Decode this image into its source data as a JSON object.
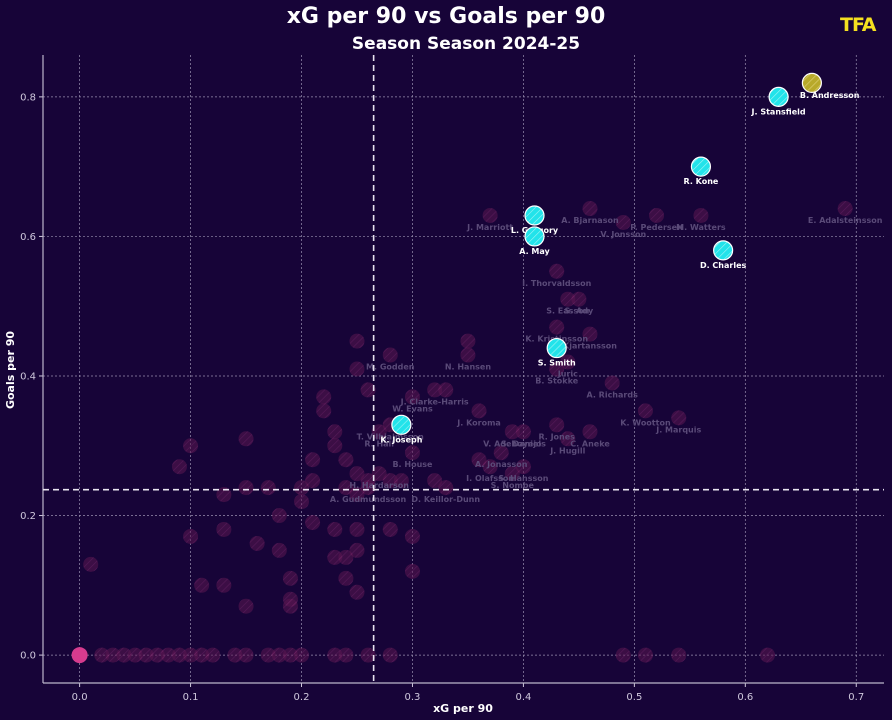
{
  "header": {
    "title": "xG per 90 vs Goals per 90",
    "subtitle": "Season Season 2024-25",
    "logo": "TFA"
  },
  "colors": {
    "background": "#170438",
    "background_point": "#8a1f66",
    "highlight_point": "#22e3ea",
    "top_point": "#b8a92a",
    "zero_point": "#d63b8e"
  },
  "chart_data": {
    "type": "scatter",
    "title": "xG per 90 vs Goals per 90",
    "subtitle": "Season Season 2024-25",
    "xlabel": "xG per 90",
    "ylabel": "Goals per 90",
    "xlim": [
      -0.033,
      0.725
    ],
    "ylim": [
      -0.04,
      0.86
    ],
    "xticks": [
      "0.0",
      "0.1",
      "0.2",
      "0.3",
      "0.4",
      "0.5",
      "0.6",
      "0.7"
    ],
    "xtick_values": [
      0,
      0.1,
      0.2,
      0.3,
      0.4,
      0.5,
      0.6,
      0.7
    ],
    "yticks": [
      "0.0",
      "0.2",
      "0.4",
      "0.6",
      "0.8"
    ],
    "ytick_values": [
      0,
      0.2,
      0.4,
      0.6,
      0.8
    ],
    "grid": true,
    "reference_lines": {
      "x_mean": 0.265,
      "y_mean": 0.237
    },
    "highlighted": [
      {
        "name": "B. Andresson",
        "x": 0.66,
        "y": 0.82,
        "kind": "top"
      },
      {
        "name": "J. Stansfield",
        "x": 0.63,
        "y": 0.8,
        "kind": "highlight"
      },
      {
        "name": "R. Kone",
        "x": 0.56,
        "y": 0.7,
        "kind": "highlight"
      },
      {
        "name": "L. Gregory",
        "x": 0.41,
        "y": 0.63,
        "kind": "highlight"
      },
      {
        "name": "A. May",
        "x": 0.41,
        "y": 0.6,
        "kind": "highlight"
      },
      {
        "name": "D. Charles",
        "x": 0.58,
        "y": 0.58,
        "kind": "highlight"
      },
      {
        "name": "S. Smith",
        "x": 0.43,
        "y": 0.44,
        "kind": "highlight"
      },
      {
        "name": "K. Joseph",
        "x": 0.29,
        "y": 0.33,
        "kind": "highlight"
      }
    ],
    "labeled_background": [
      {
        "name": "E. Adalsteinsson",
        "x": 0.69,
        "y": 0.64
      },
      {
        "name": "M. Watters",
        "x": 0.56,
        "y": 0.63
      },
      {
        "name": "P. Pedersen",
        "x": 0.52,
        "y": 0.63
      },
      {
        "name": "V. Jonsson",
        "x": 0.49,
        "y": 0.62
      },
      {
        "name": "A. Bjarnason",
        "x": 0.46,
        "y": 0.64
      },
      {
        "name": "J. Marriott",
        "x": 0.37,
        "y": 0.63
      },
      {
        "name": "I. Thorvaldsson",
        "x": 0.43,
        "y": 0.55
      },
      {
        "name": "S. Easson",
        "x": 0.44,
        "y": 0.51
      },
      {
        "name": "S. Ady",
        "x": 0.45,
        "y": 0.51
      },
      {
        "name": "K. Kristinsson",
        "x": 0.43,
        "y": 0.47
      },
      {
        "name": "Kjartansson",
        "x": 0.46,
        "y": 0.46
      },
      {
        "name": "Juric",
        "x": 0.44,
        "y": 0.42
      },
      {
        "name": "B. Stokke",
        "x": 0.43,
        "y": 0.41
      },
      {
        "name": "A. Richards",
        "x": 0.48,
        "y": 0.39
      },
      {
        "name": "K. Wootton",
        "x": 0.51,
        "y": 0.35
      },
      {
        "name": "J. Marquis",
        "x": 0.54,
        "y": 0.34
      },
      {
        "name": "M. Godden",
        "x": 0.28,
        "y": 0.43
      },
      {
        "name": "N. Hansen",
        "x": 0.35,
        "y": 0.43
      },
      {
        "name": "J. Clarke-Harris",
        "x": 0.32,
        "y": 0.38
      },
      {
        "name": "W. Evans",
        "x": 0.3,
        "y": 0.37
      },
      {
        "name": "T. Vilhjalmsson",
        "x": 0.28,
        "y": 0.33
      },
      {
        "name": "R. Hall",
        "x": 0.27,
        "y": 0.32
      },
      {
        "name": "J. Koroma",
        "x": 0.36,
        "y": 0.35
      },
      {
        "name": "B. House",
        "x": 0.3,
        "y": 0.29
      },
      {
        "name": "H. Hardarson",
        "x": 0.27,
        "y": 0.26
      },
      {
        "name": "V. Adeboyejo",
        "x": 0.39,
        "y": 0.32
      },
      {
        "name": "S. Daniels",
        "x": 0.4,
        "y": 0.32
      },
      {
        "name": "R. Jones",
        "x": 0.43,
        "y": 0.33
      },
      {
        "name": "C. Aneke",
        "x": 0.46,
        "y": 0.32
      },
      {
        "name": "J. Hugill",
        "x": 0.44,
        "y": 0.31
      },
      {
        "name": "A. Jonasson",
        "x": 0.38,
        "y": 0.29
      },
      {
        "name": "S. Hansson",
        "x": 0.4,
        "y": 0.27
      },
      {
        "name": "I. Olafsson",
        "x": 0.37,
        "y": 0.27
      },
      {
        "name": "S. Nombe",
        "x": 0.39,
        "y": 0.26
      },
      {
        "name": "A. Gudmundsson",
        "x": 0.26,
        "y": 0.24
      },
      {
        "name": "D. Keillor-Dunn",
        "x": 0.33,
        "y": 0.24
      }
    ],
    "unlabeled_background": [
      [
        0.01,
        0.13
      ],
      [
        0.09,
        0.27
      ],
      [
        0.1,
        0.3
      ],
      [
        0.1,
        0.17
      ],
      [
        0.11,
        0.1
      ],
      [
        0.13,
        0.1
      ],
      [
        0.13,
        0.18
      ],
      [
        0.13,
        0.23
      ],
      [
        0.15,
        0.24
      ],
      [
        0.15,
        0.31
      ],
      [
        0.15,
        0.07
      ],
      [
        0.16,
        0.16
      ],
      [
        0.17,
        0.24
      ],
      [
        0.18,
        0.15
      ],
      [
        0.18,
        0.2
      ],
      [
        0.19,
        0.11
      ],
      [
        0.19,
        0.08
      ],
      [
        0.19,
        0.07
      ],
      [
        0.2,
        0.22
      ],
      [
        0.2,
        0.24
      ],
      [
        0.21,
        0.28
      ],
      [
        0.21,
        0.25
      ],
      [
        0.21,
        0.19
      ],
      [
        0.22,
        0.35
      ],
      [
        0.22,
        0.37
      ],
      [
        0.23,
        0.32
      ],
      [
        0.23,
        0.3
      ],
      [
        0.23,
        0.18
      ],
      [
        0.23,
        0.14
      ],
      [
        0.24,
        0.28
      ],
      [
        0.24,
        0.24
      ],
      [
        0.24,
        0.14
      ],
      [
        0.24,
        0.11
      ],
      [
        0.25,
        0.45
      ],
      [
        0.25,
        0.41
      ],
      [
        0.25,
        0.26
      ],
      [
        0.25,
        0.23
      ],
      [
        0.25,
        0.18
      ],
      [
        0.25,
        0.15
      ],
      [
        0.25,
        0.09
      ],
      [
        0.26,
        0.38
      ],
      [
        0.26,
        0.25
      ],
      [
        0.28,
        0.25
      ],
      [
        0.28,
        0.18
      ],
      [
        0.29,
        0.25
      ],
      [
        0.3,
        0.17
      ],
      [
        0.3,
        0.12
      ],
      [
        0.32,
        0.25
      ],
      [
        0.33,
        0.38
      ],
      [
        0.35,
        0.45
      ],
      [
        0.36,
        0.28
      ],
      [
        0.02,
        0.0
      ],
      [
        0.03,
        0.0
      ],
      [
        0.04,
        0.0
      ],
      [
        0.05,
        0.0
      ],
      [
        0.06,
        0.0
      ],
      [
        0.07,
        0.0
      ],
      [
        0.08,
        0.0
      ],
      [
        0.09,
        0.0
      ],
      [
        0.1,
        0.0
      ],
      [
        0.11,
        0.0
      ],
      [
        0.12,
        0.0
      ],
      [
        0.14,
        0.0
      ],
      [
        0.15,
        0.0
      ],
      [
        0.17,
        0.0
      ],
      [
        0.18,
        0.0
      ],
      [
        0.19,
        0.0
      ],
      [
        0.2,
        0.0
      ],
      [
        0.23,
        0.0
      ],
      [
        0.24,
        0.0
      ],
      [
        0.26,
        0.0
      ],
      [
        0.28,
        0.0
      ],
      [
        0.49,
        0.0
      ],
      [
        0.51,
        0.0
      ],
      [
        0.54,
        0.0
      ],
      [
        0.62,
        0.0
      ]
    ],
    "zero_point": {
      "x": 0.0,
      "y": 0.0
    }
  }
}
